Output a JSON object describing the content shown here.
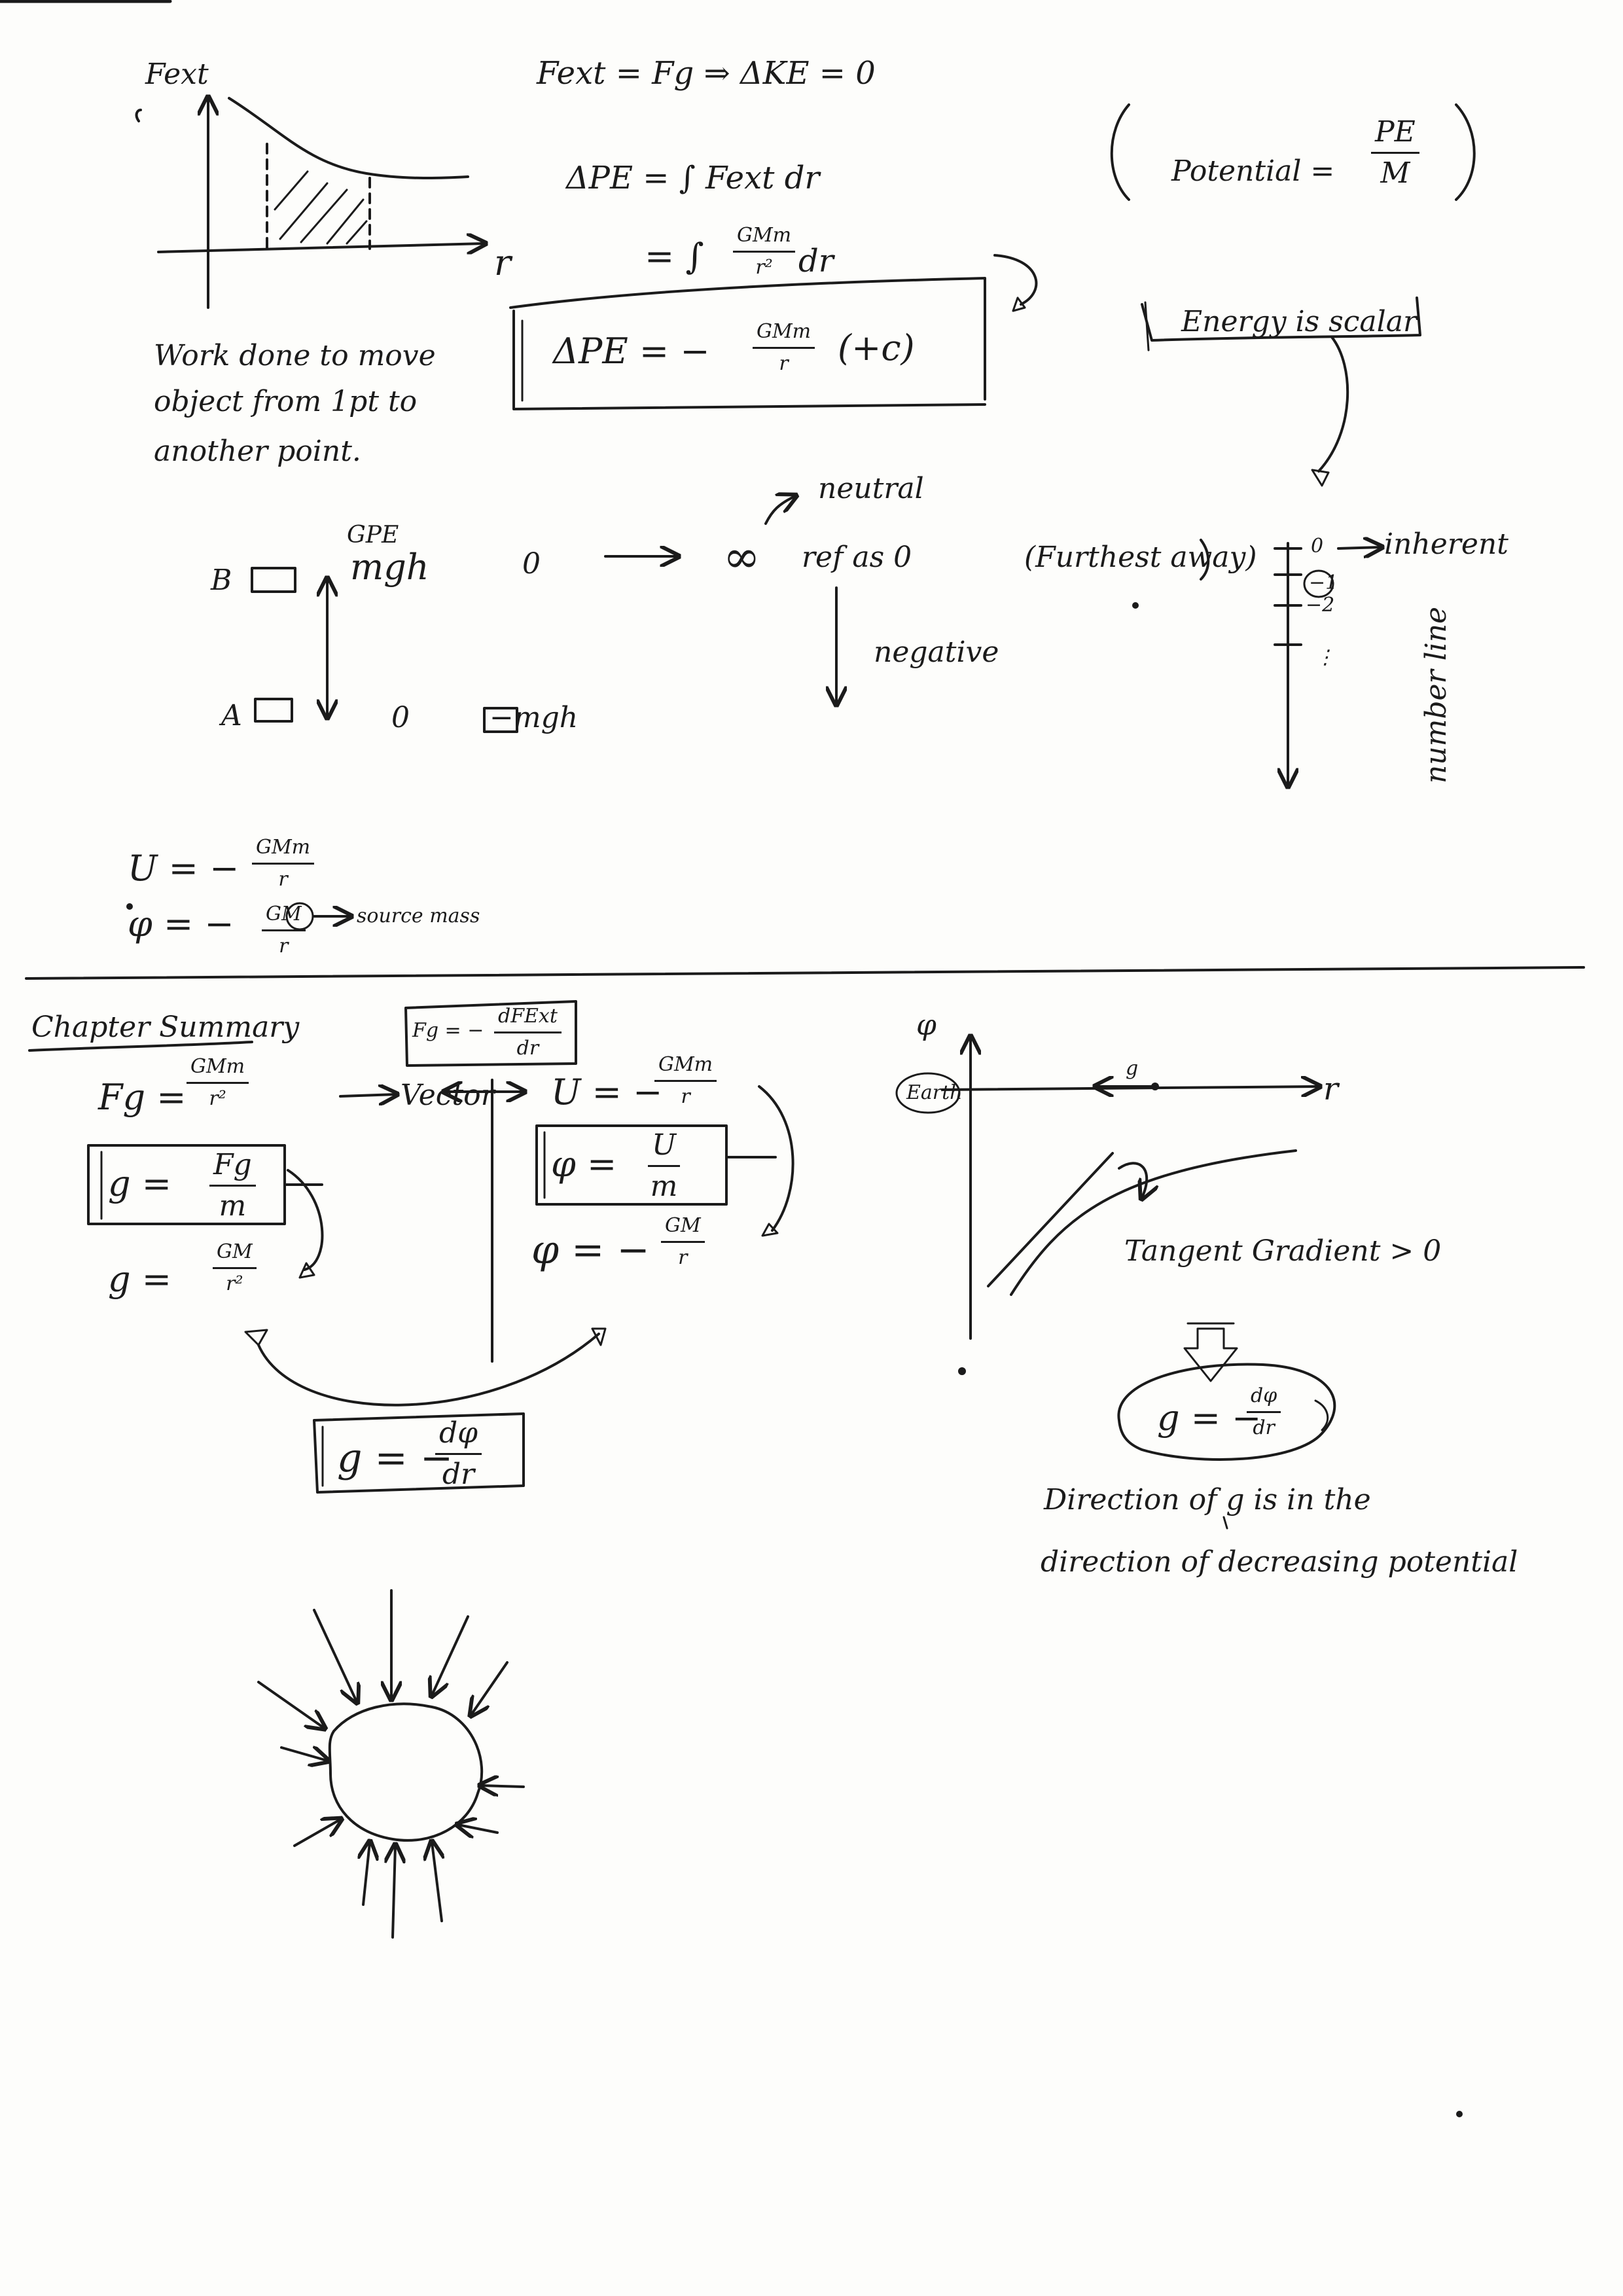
{
  "section_potential": {
    "graph": {
      "y_label": "Fext",
      "x_label": "r",
      "caption_lines": [
        "Work done to move",
        "object from 1pt to",
        "another point."
      ]
    },
    "eq_fext_fg": "Fext = Fg ⇒ ΔKE = 0",
    "eq_dpe_integral": "ΔPE = ∫ Fext dr",
    "eq_integral_lhs": "= ∫",
    "eq_integral_num": "GMm",
    "eq_integral_den": "r²",
    "eq_integral_dr": "dr",
    "boxed_lhs": "ΔPE = −",
    "boxed_num": "GMm",
    "boxed_den": "r",
    "boxed_rhs": "(+c)",
    "potential_label": "Potential =",
    "potential_num": "PE",
    "potential_den": "M",
    "energy_scalar": "Energy is scalar",
    "number_line": {
      "ticks": [
        "0",
        "−1",
        "−2",
        "⋮"
      ],
      "inherent_label": "inherent",
      "side_label": "number line"
    },
    "example": {
      "point_b": "B",
      "point_a": "A",
      "gpe_label": "GPE",
      "mgh": "mgh",
      "zero_a": "0",
      "neg_mgh": "−mgh",
      "zero_start": "0",
      "infinity": "∞",
      "ref_zero": "ref as 0",
      "neutral": "neutral",
      "furthest": "(Furthest away)",
      "negative": "negative"
    },
    "u_eq_lhs": "U = −",
    "u_num": "GMm",
    "u_den": "r",
    "phi_eq_lhs": "φ = −",
    "phi_num": "GM",
    "phi_den": "r",
    "source_mass": "source mass"
  },
  "section_summary": {
    "title": "Chapter Summary",
    "fg_lhs": "Fg =",
    "fg_num": "GMm",
    "fg_den": "r²",
    "vector_label": "Vector",
    "g_fg_lhs": "g =",
    "g_fg_num": "Fg",
    "g_fg_den": "m",
    "g_gm_lhs": "g =",
    "g_gm_num": "GM",
    "g_gm_den": "r²",
    "fg_deriv_lhs": "Fg = −",
    "fg_deriv_num": "dFExt",
    "fg_deriv_den": "dr",
    "u_lhs": "U = −",
    "u_num": "GMm",
    "u_den": "r",
    "phi_u_lhs": "φ =",
    "phi_u_num": "U",
    "phi_u_den": "m",
    "phi_gm_lhs": "φ = −",
    "phi_gm_num": "GM",
    "phi_gm_den": "r",
    "g_dphi_lhs": "g = −",
    "g_dphi_num": "dφ",
    "g_dphi_den": "dr",
    "phi_graph": {
      "y_label": "φ",
      "x_label": "r",
      "earth_label": "Earth",
      "g_label": "g",
      "tangent_label": "Tangent Gradient > 0",
      "implies": "⇓"
    },
    "g_oval_lhs": "g = −",
    "g_oval_num": "dφ",
    "g_oval_den": "dr",
    "direction_lines": [
      "Direction of g is in the",
      "direction of decreasing potential"
    ]
  }
}
